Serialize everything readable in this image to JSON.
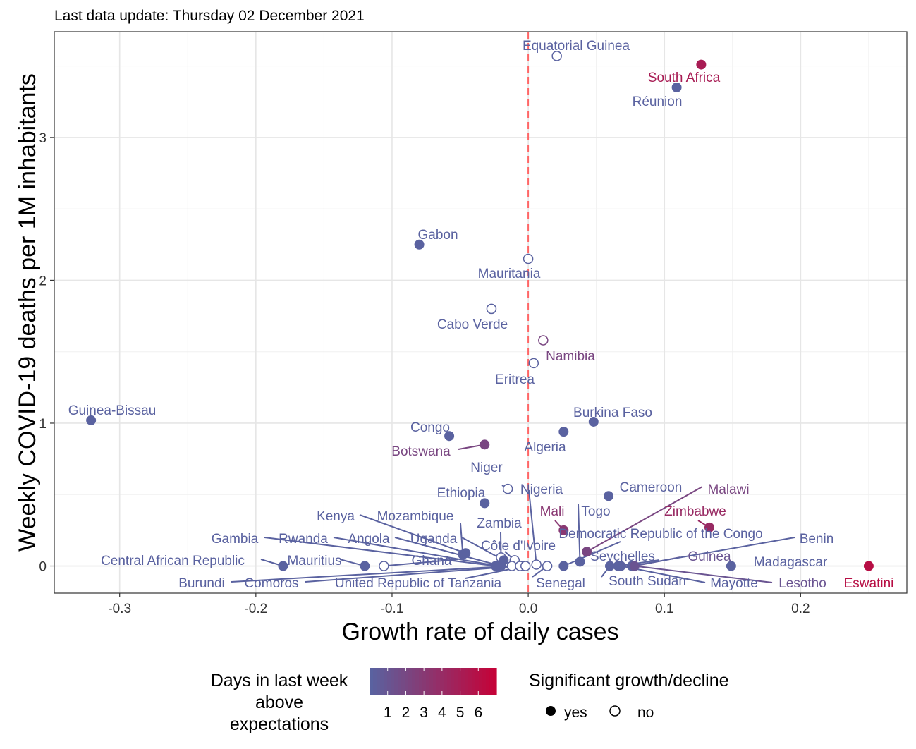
{
  "chart_data": {
    "type": "scatter",
    "subtitle": "Last data update: Thursday 02 December 2021",
    "xlabel": "Growth rate of daily cases",
    "ylabel": "Weekly COVID-19 deaths per 1M inhabitants",
    "xlim": [
      -0.348,
      0.278
    ],
    "ylim": [
      -0.19,
      3.74
    ],
    "x_ticks": [
      -0.3,
      -0.2,
      -0.1,
      0.0,
      0.1,
      0.2
    ],
    "x_tick_labels": [
      "-0.3",
      "-0.2",
      "-0.1",
      "0.0",
      "0.1",
      "0.2"
    ],
    "y_ticks": [
      0,
      1,
      2,
      3
    ],
    "y_tick_labels": [
      "0",
      "1",
      "2",
      "3"
    ],
    "reference_line_x": 0,
    "reference_line_color": "#ff6666",
    "grid": true,
    "color_scale": {
      "low": "#5a62a0",
      "high": "#c70035",
      "min": 0,
      "max": 7
    },
    "points": [
      {
        "name": "Equatorial Guinea",
        "x": 0.021,
        "y": 3.57,
        "days": 0,
        "significant": false
      },
      {
        "name": "South Africa",
        "x": 0.127,
        "y": 3.51,
        "days": 5,
        "significant": true
      },
      {
        "name": "Réunion",
        "x": 0.109,
        "y": 3.35,
        "days": 0,
        "significant": true
      },
      {
        "name": "Gabon",
        "x": -0.08,
        "y": 2.25,
        "days": 0,
        "significant": true
      },
      {
        "name": "Mauritania",
        "x": 0.0,
        "y": 2.15,
        "days": 0,
        "significant": false
      },
      {
        "name": "Cabo Verde",
        "x": -0.027,
        "y": 1.8,
        "days": 0,
        "significant": false
      },
      {
        "name": "Namibia",
        "x": 0.011,
        "y": 1.58,
        "days": 2,
        "significant": false
      },
      {
        "name": "Eritrea",
        "x": 0.004,
        "y": 1.42,
        "days": 0,
        "significant": false
      },
      {
        "name": "Guinea-Bissau",
        "x": -0.321,
        "y": 1.02,
        "days": 0,
        "significant": true
      },
      {
        "name": "Burkina Faso",
        "x": 0.048,
        "y": 1.01,
        "days": 0,
        "significant": true
      },
      {
        "name": "Algeria",
        "x": 0.026,
        "y": 0.94,
        "days": 0,
        "significant": true
      },
      {
        "name": "Congo",
        "x": -0.058,
        "y": 0.91,
        "days": 0,
        "significant": true
      },
      {
        "name": "Botswana",
        "x": -0.032,
        "y": 0.85,
        "days": 2,
        "significant": true
      },
      {
        "name": "Niger",
        "x": -0.015,
        "y": 0.54,
        "days": 0,
        "significant": false
      },
      {
        "name": "Cameroon",
        "x": 0.059,
        "y": 0.49,
        "days": 0,
        "significant": true
      },
      {
        "name": "Ethiopia",
        "x": -0.032,
        "y": 0.44,
        "days": 0,
        "significant": true
      },
      {
        "name": "Zimbabwe",
        "x": 0.133,
        "y": 0.27,
        "days": 4,
        "significant": true
      },
      {
        "name": "Mali",
        "x": 0.026,
        "y": 0.25,
        "days": 3,
        "significant": true
      },
      {
        "name": "Malawi",
        "x": 0.043,
        "y": 0.1,
        "days": 2,
        "significant": true
      },
      {
        "name": "Togo",
        "x": 0.038,
        "y": 0.03,
        "days": 0,
        "significant": true
      },
      {
        "name": "Kenya",
        "x": -0.046,
        "y": 0.09,
        "days": 0,
        "significant": true
      },
      {
        "name": "Mozambique",
        "x": -0.048,
        "y": 0.08,
        "days": 0,
        "significant": true
      },
      {
        "name": "Zambia",
        "x": -0.02,
        "y": 0.06,
        "days": 0,
        "significant": false
      },
      {
        "name": "Côte d'Ivoire",
        "x": -0.01,
        "y": 0.04,
        "days": 0,
        "significant": false
      },
      {
        "name": "Uganda",
        "x": -0.018,
        "y": 0.04,
        "days": 0,
        "significant": true
      },
      {
        "name": "Nigeria",
        "x": 0.006,
        "y": 0.01,
        "days": 0,
        "significant": false
      },
      {
        "name": "Gambia",
        "x": -0.024,
        "y": 0.0,
        "days": 0,
        "significant": true
      },
      {
        "name": "Rwanda",
        "x": -0.022,
        "y": 0.0,
        "days": 0,
        "significant": true
      },
      {
        "name": "Angola",
        "x": -0.02,
        "y": 0.0,
        "days": 0,
        "significant": true
      },
      {
        "name": "Central African Republic",
        "x": -0.18,
        "y": 0.0,
        "days": 0,
        "significant": true
      },
      {
        "name": "Mauritius",
        "x": -0.12,
        "y": 0.0,
        "days": 0,
        "significant": true
      },
      {
        "name": "Ghana",
        "x": -0.106,
        "y": 0.0,
        "days": 0,
        "significant": false
      },
      {
        "name": "Burundi",
        "x": -0.012,
        "y": 0.0,
        "days": 0,
        "significant": false
      },
      {
        "name": "Comoros",
        "x": -0.006,
        "y": 0.0,
        "days": 0,
        "significant": false
      },
      {
        "name": "United Republic of Tanzania",
        "x": -0.002,
        "y": 0.0,
        "days": 0,
        "significant": false
      },
      {
        "name": "Senegal",
        "x": 0.014,
        "y": 0.0,
        "days": 0,
        "significant": false
      },
      {
        "name": "Democratic Republic of the Congo",
        "x": 0.026,
        "y": 0.0,
        "days": 0,
        "significant": true
      },
      {
        "name": "South Sudan",
        "x": 0.06,
        "y": 0.0,
        "days": 0,
        "significant": true
      },
      {
        "name": "Seychelles",
        "x": 0.066,
        "y": 0.0,
        "days": 0,
        "significant": true
      },
      {
        "name": "Guinea",
        "x": 0.078,
        "y": 0.0,
        "days": 1,
        "significant": true
      },
      {
        "name": "Mayotte",
        "x": 0.068,
        "y": 0.0,
        "days": 0,
        "significant": true
      },
      {
        "name": "Benin",
        "x": 0.076,
        "y": 0.0,
        "days": 0,
        "significant": true
      },
      {
        "name": "Lesotho",
        "x": 0.078,
        "y": 0.0,
        "days": 1,
        "significant": true
      },
      {
        "name": "Madagascar",
        "x": 0.149,
        "y": 0.0,
        "days": 0,
        "significant": true
      },
      {
        "name": "Eswatini",
        "x": 0.25,
        "y": 0.0,
        "days": 6,
        "significant": true
      }
    ],
    "legend": {
      "color_title_lines": [
        "Days in last week",
        "above",
        "expectations"
      ],
      "color_ticks": [
        "1",
        "2",
        "3",
        "4",
        "5",
        "6"
      ],
      "shape_title": "Significant growth/decline",
      "shape_entries": [
        "yes",
        "no"
      ]
    }
  }
}
